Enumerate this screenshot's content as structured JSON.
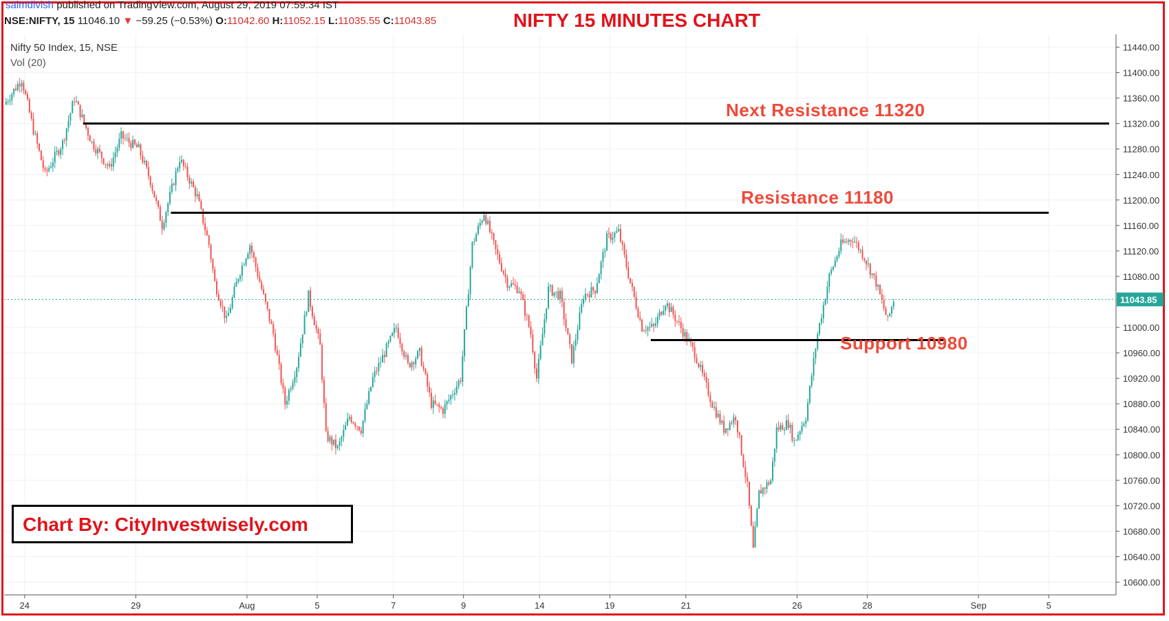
{
  "header": {
    "publisher_user": "saimdivish",
    "publisher_text": " published on TradingView.com, August 29, 2019 07:59:34 IST",
    "symbol": "NSE:NIFTY, 15",
    "last": "11046.10",
    "change": "−59.25 (−0.53%)",
    "open_label": "O:",
    "open": "11042.60",
    "high_label": "H:",
    "high": "11052.15",
    "low_label": "L:",
    "low": "11035.55",
    "close_label": "C:",
    "close": "11043.85"
  },
  "title": "NIFTY 15 MINUTES CHART",
  "series_label": "Nifty 50 Index, 15, NSE",
  "volume_label": "Vol (20)",
  "annotations": {
    "next_resistance": "Next Resistance 11320",
    "resistance": "Resistance 11180",
    "support": "Support 10980"
  },
  "credit": "Chart By: CityInvestwisely.com",
  "colors": {
    "up": "#26a69a",
    "down": "#ef5350",
    "price_line": "#26a69a",
    "accent": "#e0141c",
    "level_line": "#000000"
  },
  "chart_data": {
    "type": "candlestick",
    "title": "NIFTY 15 MINUTES CHART",
    "ylim": [
      10580,
      11460
    ],
    "y_ticks": [
      11440,
      11400,
      11360,
      11320,
      11280,
      11240,
      11200,
      11160,
      11120,
      11080,
      11000,
      10960,
      10920,
      10880,
      10840,
      10800,
      10760,
      10720,
      10680,
      10640,
      10600
    ],
    "y_tick_labels": [
      "11440.00",
      "11400.00",
      "11360.00",
      "11320.00",
      "11280.00",
      "11240.00",
      "11200.00",
      "11160.00",
      "11120.00",
      "11080.00",
      "11000.00",
      "10960.00",
      "10920.00",
      "10880.00",
      "10840.00",
      "10800.00",
      "10760.00",
      "10720.00",
      "10680.00",
      "10640.00",
      "10600.00"
    ],
    "x_labels": [
      "24",
      "29",
      "Aug",
      "5",
      "7",
      "9",
      "14",
      "19",
      "21",
      "26",
      "28",
      "Sep",
      "5"
    ],
    "x_label_slots": [
      3,
      22,
      41,
      53,
      66,
      78,
      91,
      103,
      116,
      135,
      147,
      166,
      178
    ],
    "total_slots": 190,
    "current_price": 11043.85,
    "current_price_label": "11043.85",
    "horizontal_levels": [
      {
        "name": "Next Resistance",
        "value": 11320,
        "from_slot": 13,
        "to_slot": 191
      },
      {
        "name": "Resistance",
        "value": 11180,
        "from_slot": 28,
        "to_slot": 178
      },
      {
        "name": "Support",
        "value": 10980,
        "from_slot": 110,
        "to_slot": 160
      }
    ],
    "price_path": [
      [
        0,
        11350
      ],
      [
        3,
        11390
      ],
      [
        5,
        11310
      ],
      [
        7,
        11240
      ],
      [
        10,
        11290
      ],
      [
        12,
        11360
      ],
      [
        15,
        11290
      ],
      [
        18,
        11250
      ],
      [
        20,
        11300
      ],
      [
        23,
        11280
      ],
      [
        25,
        11230
      ],
      [
        27,
        11160
      ],
      [
        30,
        11265
      ],
      [
        33,
        11205
      ],
      [
        35,
        11130
      ],
      [
        36,
        11070
      ],
      [
        38,
        11010
      ],
      [
        40,
        11080
      ],
      [
        42,
        11130
      ],
      [
        44,
        11060
      ],
      [
        46,
        10990
      ],
      [
        48,
        10880
      ],
      [
        50,
        10940
      ],
      [
        52,
        11050
      ],
      [
        54,
        10970
      ],
      [
        55,
        10830
      ],
      [
        57,
        10810
      ],
      [
        59,
        10860
      ],
      [
        61,
        10840
      ],
      [
        63,
        10920
      ],
      [
        65,
        10960
      ],
      [
        67,
        11000
      ],
      [
        69,
        10940
      ],
      [
        71,
        10960
      ],
      [
        73,
        10880
      ],
      [
        75,
        10870
      ],
      [
        78,
        10920
      ],
      [
        80,
        11130
      ],
      [
        82,
        11180
      ],
      [
        84,
        11120
      ],
      [
        86,
        11070
      ],
      [
        88,
        11060
      ],
      [
        90,
        10990
      ],
      [
        91,
        10920
      ],
      [
        93,
        11060
      ],
      [
        95,
        11050
      ],
      [
        97,
        10950
      ],
      [
        99,
        11050
      ],
      [
        101,
        11060
      ],
      [
        103,
        11140
      ],
      [
        105,
        11150
      ],
      [
        107,
        11070
      ],
      [
        109,
        11000
      ],
      [
        111,
        11000
      ],
      [
        113,
        11040
      ],
      [
        115,
        11010
      ],
      [
        118,
        10960
      ],
      [
        121,
        10880
      ],
      [
        123,
        10840
      ],
      [
        125,
        10860
      ],
      [
        127,
        10750
      ],
      [
        128,
        10650
      ],
      [
        129,
        10740
      ],
      [
        131,
        10760
      ],
      [
        132,
        10840
      ],
      [
        134,
        10850
      ],
      [
        135,
        10820
      ],
      [
        137,
        10860
      ],
      [
        139,
        10990
      ],
      [
        141,
        11080
      ],
      [
        143,
        11130
      ],
      [
        145,
        11140
      ],
      [
        147,
        11110
      ],
      [
        149,
        11070
      ],
      [
        151,
        11010
      ],
      [
        152,
        11043.85
      ]
    ]
  }
}
